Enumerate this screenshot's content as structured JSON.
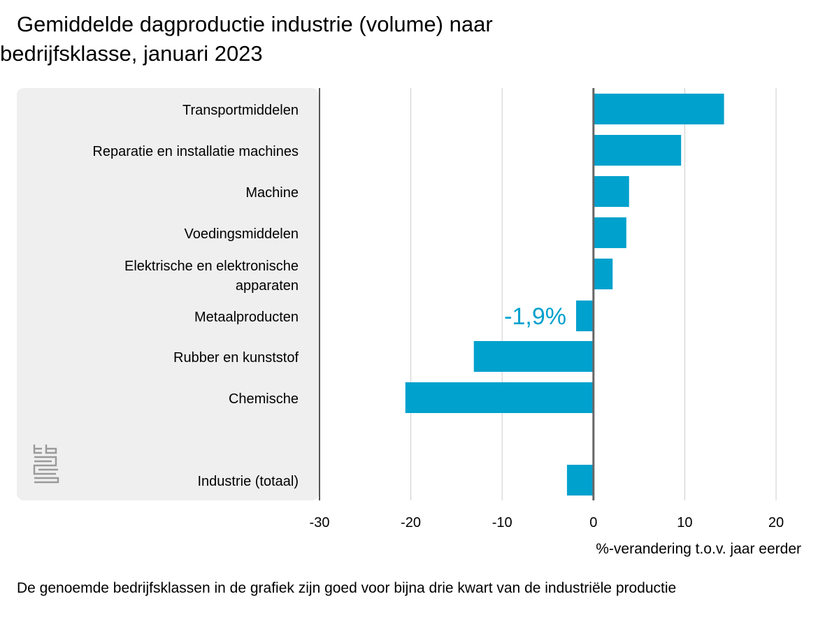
{
  "title": "Gemiddelde dagproductie industrie (volume) naar bedrijfsklasse, januari 2023",
  "footnote": "De genoemde bedrijfsklassen in de grafiek zijn goed voor bijna drie kwart van de industriële productie",
  "logo_icon": "cbs-logo-icon",
  "colors": {
    "bar": "#00a1cd",
    "panel": "#efefef",
    "grid": "#cccccc",
    "axis": "#666666",
    "annotation": "#00a1cd"
  },
  "chart_data": {
    "type": "bar",
    "orientation": "horizontal",
    "categories": [
      "Transportmiddelen",
      "Reparatie en installatie machines",
      "Machine",
      "Voedingsmiddelen",
      "Elektrische en elektronische apparaten",
      "Metaalproducten",
      "Rubber en kunststof",
      "Chemische",
      "Industrie (totaal)"
    ],
    "values": [
      14.3,
      9.6,
      3.9,
      3.6,
      2.1,
      -1.9,
      -13.1,
      -20.6,
      -2.9
    ],
    "xlabel": "%-verandering t.o.v. jaar eerder",
    "xlim": [
      -30,
      20
    ],
    "xticks": [
      "-30",
      "-20",
      "-10",
      "0",
      "10",
      "20"
    ],
    "grid": true,
    "annotations": [
      {
        "category": "Metaalproducten",
        "text": "-1,9%"
      }
    ]
  }
}
